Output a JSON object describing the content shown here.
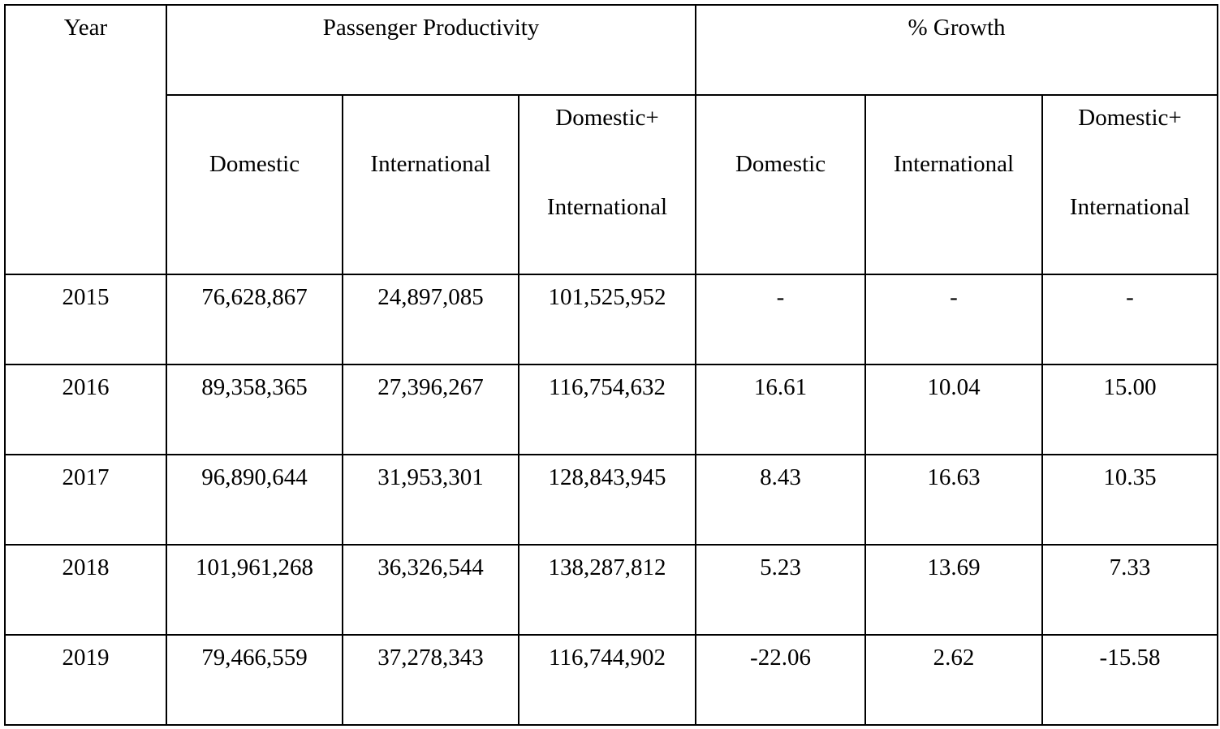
{
  "table": {
    "year_header": "Year",
    "groups": [
      {
        "label": "Passenger Productivity"
      },
      {
        "label": "% Growth"
      }
    ],
    "sub_headers": [
      {
        "line1": "Domestic"
      },
      {
        "line1": "International"
      },
      {
        "line1": "Domestic+",
        "line2": "International"
      },
      {
        "line1": "Domestic"
      },
      {
        "line1": "International"
      },
      {
        "line1": "Domestic+",
        "line2": "International"
      }
    ],
    "rows": [
      {
        "year": "2015",
        "cells": [
          "76,628,867",
          "24,897,085",
          "101,525,952",
          "-",
          "-",
          "-"
        ]
      },
      {
        "year": "2016",
        "cells": [
          "89,358,365",
          "27,396,267",
          "116,754,632",
          "16.61",
          "10.04",
          "15.00"
        ]
      },
      {
        "year": "2017",
        "cells": [
          "96,890,644",
          "31,953,301",
          "128,843,945",
          "8.43",
          "16.63",
          "10.35"
        ]
      },
      {
        "year": "2018",
        "cells": [
          "101,961,268",
          "36,326,544",
          "138,287,812",
          "5.23",
          "13.69",
          "7.33"
        ]
      },
      {
        "year": "2019",
        "cells": [
          "79,466,559",
          "37,278,343",
          "116,744,902",
          "-22.06",
          "2.62",
          "-15.58"
        ]
      }
    ]
  }
}
